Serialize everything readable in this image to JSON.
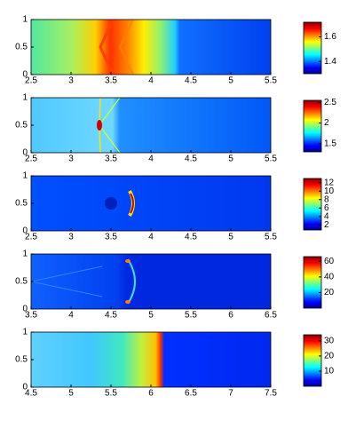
{
  "chart_data": [
    {
      "type": "heatmap",
      "xlim": [
        2.5,
        5.5
      ],
      "xticks": [
        2.5,
        3,
        3.5,
        4,
        4.5,
        5,
        5.5
      ],
      "ylim": [
        0,
        1
      ],
      "yticks": [
        0,
        0.5,
        1
      ],
      "clim": [
        1.3,
        1.72
      ],
      "cticks": [
        1.4,
        1.6
      ]
    },
    {
      "type": "heatmap",
      "xlim": [
        2.5,
        5.5
      ],
      "xticks": [
        2.5,
        3,
        3.5,
        4,
        4.5,
        5,
        5.5
      ],
      "ylim": [
        0,
        1
      ],
      "yticks": [
        0,
        0.5,
        1
      ],
      "clim": [
        1.3,
        2.55
      ],
      "cticks": [
        1.5,
        2,
        2.5
      ]
    },
    {
      "type": "heatmap",
      "xlim": [
        2.5,
        5.5
      ],
      "xticks": [
        2.5,
        3,
        3.5,
        4,
        4.5,
        5,
        5.5
      ],
      "ylim": [
        0,
        1
      ],
      "yticks": [
        0,
        0.5,
        1
      ],
      "clim": [
        0.8,
        13
      ],
      "cticks": [
        2,
        4,
        6,
        8,
        10,
        12
      ]
    },
    {
      "type": "heatmap",
      "xlim": [
        3.5,
        6.5
      ],
      "xticks": [
        3.5,
        4,
        4.5,
        5,
        5.5,
        6,
        6.5
      ],
      "ylim": [
        0,
        1
      ],
      "yticks": [
        0,
        0.5,
        1
      ],
      "clim": [
        0,
        66
      ],
      "cticks": [
        20,
        40,
        60
      ]
    },
    {
      "type": "heatmap",
      "xlim": [
        4.5,
        7.5
      ],
      "xticks": [
        4.5,
        5,
        5.5,
        6,
        6.5,
        7,
        7.5
      ],
      "ylim": [
        0,
        1
      ],
      "yticks": [
        0,
        0.5,
        1
      ],
      "clim": [
        0,
        34
      ],
      "cticks": [
        10,
        20,
        30
      ]
    }
  ]
}
